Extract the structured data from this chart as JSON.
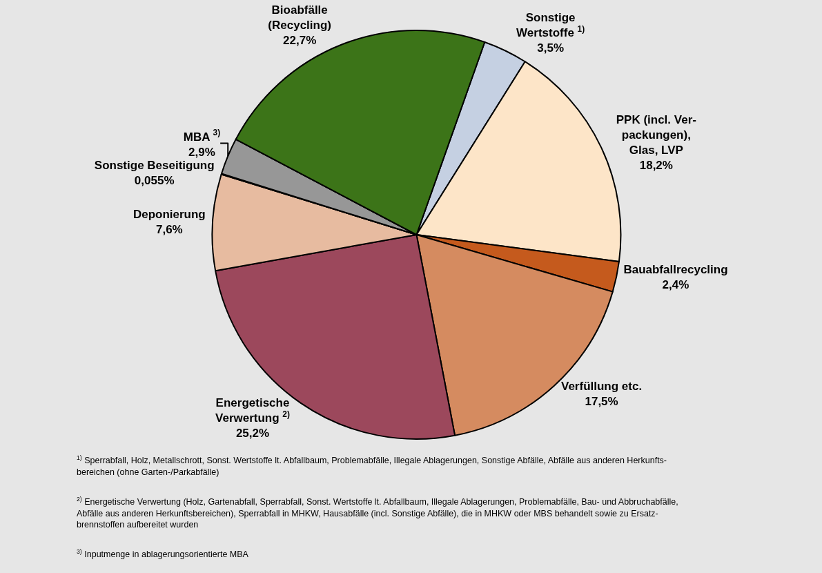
{
  "chart_data": {
    "type": "pie",
    "categories": [
      "Sonstige\nWertstoffe $^{1)}$",
      "PPK (incl. Ver-\npackungen),\nGlas, LVP",
      "Bauabfallrecycling",
      "Verfüllung etc.",
      "Energetische\nVerwertung $^{2)}$",
      "Deponierung",
      "Sonstige Beseitigung",
      "MBA $^{3)}$",
      "Bioabfälle\n(Recycling)"
    ],
    "values": [
      3.5,
      18.2,
      2.4,
      17.5,
      25.2,
      7.6,
      0.055,
      2.9,
      22.7
    ],
    "value_labels": [
      "3,5%",
      "18,2%",
      "2,4%",
      "17,5%",
      "25,2%",
      "7,6%",
      "0,055%",
      "2,9%",
      "22,7%"
    ],
    "colors": [
      "#c5d0e2",
      "#fde5c8",
      "#c55a1d",
      "#d58b60",
      "#9c485c",
      "#e7bba0",
      "#222222",
      "#979797",
      "#3c7418"
    ],
    "legend": false,
    "annotations": [
      "$^{1)}$ Sperrabfall, Holz, Metallschrott, Sonst. Wertstoffe lt. Abfallbaum, Problemabfälle, Illegale Ablagerungen, Sonstige Abfälle, Abfälle aus anderen Herkunfts-\nbereichen (ohne Garten-/Parkabfälle)",
      "$^{2)}$ Energetische Verwertung (Holz, Gartenabfall, Sperrabfall, Sonst. Wertstoffe lt. Abfallbaum, Illegale Ablagerungen, Problemabfälle, Bau- und Abbruchabfälle,\nAbfälle aus anderen Herkunftsbereichen), Sperrabfall in MHKW, Hausabfälle (incl. Sonstige Abfälle), die in MHKW oder MBS behandelt sowie zu Ersatz-\nbrennstoffen aufbereitet wurden",
      "$^{3)}$ Inputmenge in ablagerungsorientierte MBA"
    ]
  }
}
